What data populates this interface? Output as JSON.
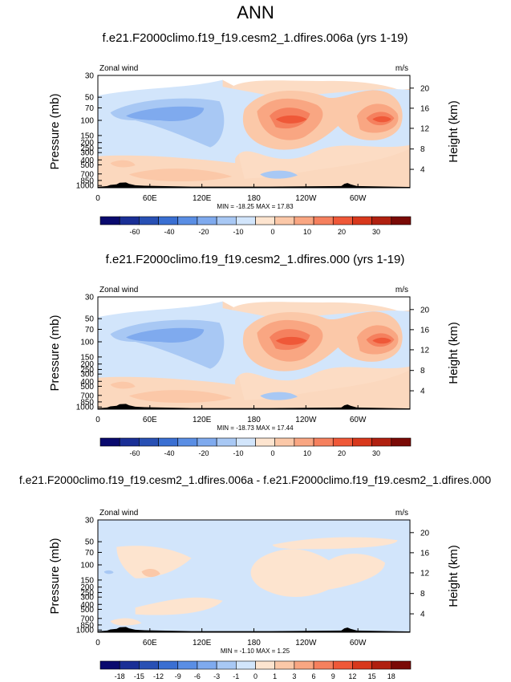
{
  "page_title": "ANN",
  "chart_data": [
    {
      "type": "contour",
      "title": "f.e21.F2000climo.f19_f19.cesm2_1.dfires.006a (yrs 1-19)",
      "left_string": "Zonal wind",
      "right_string": "m/s",
      "ylabel": "Pressure (mb)",
      "ylabel_right": "Height (km)",
      "x_ticks": [
        "0",
        "60E",
        "120E",
        "180",
        "120W",
        "60W"
      ],
      "y_ticks": [
        "30",
        "50",
        "70",
        "100",
        "150",
        "200",
        "250",
        "300",
        "400",
        "500",
        "700",
        "850",
        "1000"
      ],
      "height_ticks": [
        "20",
        "16",
        "12",
        "8",
        "4"
      ],
      "min_max": "MIN = -18.25   MAX = 17.83",
      "colorbar_labels": [
        "-60",
        "-40",
        "-20",
        "-10",
        "0",
        "10",
        "20",
        "30"
      ],
      "colorbar_colors": [
        "#0a0a6e",
        "#1a2f96",
        "#2850b4",
        "#3a6fd2",
        "#5a8ee4",
        "#7faaee",
        "#a8c8f4",
        "#d2e5fb",
        "#fde4cf",
        "#fbc8a8",
        "#f9a682",
        "#f5805e",
        "#ef5838",
        "#d8381c",
        "#b02010",
        "#7a0a06"
      ],
      "field": "base"
    },
    {
      "type": "contour",
      "title": "f.e21.F2000climo.f19_f19.cesm2_1.dfires.000 (yrs 1-19)",
      "left_string": "Zonal wind",
      "right_string": "m/s",
      "ylabel": "Pressure (mb)",
      "ylabel_right": "Height (km)",
      "x_ticks": [
        "0",
        "60E",
        "120E",
        "180",
        "120W",
        "60W"
      ],
      "y_ticks": [
        "30",
        "50",
        "70",
        "100",
        "150",
        "200",
        "250",
        "300",
        "400",
        "500",
        "700",
        "850",
        "1000"
      ],
      "height_ticks": [
        "20",
        "16",
        "12",
        "8",
        "4"
      ],
      "min_max": "MIN = -18.73   MAX = 17.44",
      "colorbar_labels": [
        "-60",
        "-40",
        "-20",
        "-10",
        "0",
        "10",
        "20",
        "30"
      ],
      "colorbar_colors": [
        "#0a0a6e",
        "#1a2f96",
        "#2850b4",
        "#3a6fd2",
        "#5a8ee4",
        "#7faaee",
        "#a8c8f4",
        "#d2e5fb",
        "#fde4cf",
        "#fbc8a8",
        "#f9a682",
        "#f5805e",
        "#ef5838",
        "#d8381c",
        "#b02010",
        "#7a0a06"
      ],
      "field": "base"
    },
    {
      "type": "contour",
      "title": "f.e21.F2000climo.f19_f19.cesm2_1.dfires.006a - f.e21.F2000climo.f19_f19.cesm2_1.dfires.000",
      "left_string": "Zonal wind",
      "right_string": "m/s",
      "ylabel": "Pressure (mb)",
      "ylabel_right": "Height (km)",
      "x_ticks": [
        "0",
        "60E",
        "120E",
        "180",
        "120W",
        "60W"
      ],
      "y_ticks": [
        "30",
        "50",
        "70",
        "100",
        "150",
        "200",
        "250",
        "300",
        "400",
        "500",
        "700",
        "850",
        "1000"
      ],
      "height_ticks": [
        "20",
        "16",
        "12",
        "8",
        "4"
      ],
      "min_max": "MIN = -1.10   MAX = 1.25",
      "colorbar_labels": [
        "-18",
        "-15",
        "-12",
        "-9",
        "-6",
        "-3",
        "-1",
        "0",
        "1",
        "3",
        "6",
        "9",
        "12",
        "15",
        "18"
      ],
      "colorbar_colors": [
        "#0a0a6e",
        "#1a2f96",
        "#2850b4",
        "#3a6fd2",
        "#5a8ee4",
        "#7faaee",
        "#a8c8f4",
        "#d2e5fb",
        "#fde4cf",
        "#fbc8a8",
        "#f9a682",
        "#f5805e",
        "#ef5838",
        "#d8381c",
        "#b02010",
        "#7a0a06"
      ],
      "field": "diff"
    }
  ]
}
